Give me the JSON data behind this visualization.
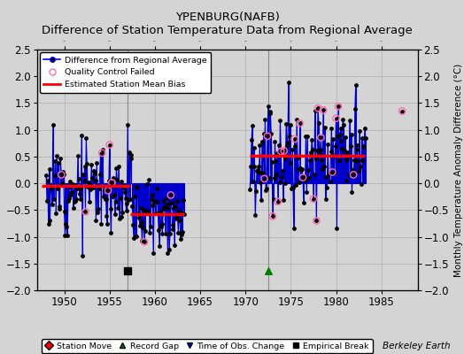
{
  "title": "YPENBURG(NAFB)",
  "subtitle": "Difference of Station Temperature Data from Regional Average",
  "ylabel": "Monthly Temperature Anomaly Difference (°C)",
  "bg_color": "#d8d8d8",
  "plot_bg_color": "#d8d8d8",
  "ylim": [
    -2.0,
    2.5
  ],
  "xlim": [
    1947,
    1989
  ],
  "yticks": [
    -2,
    -1.5,
    -1,
    -0.5,
    0,
    0.5,
    1,
    1.5,
    2,
    2.5
  ],
  "xticks": [
    1950,
    1955,
    1960,
    1965,
    1970,
    1975,
    1980,
    1985
  ],
  "segment1_bias": -0.05,
  "segment1_start": 1947.5,
  "segment1_end": 1957.3,
  "segment2_bias": -0.57,
  "segment2_start": 1957.3,
  "segment2_end": 1963.2,
  "segment3_bias": 0.52,
  "segment3_start": 1970.5,
  "segment3_end": 1983.2,
  "empirical_break_x": 1957.0,
  "record_gap_x": 1972.5,
  "vline1_x": 1957.0,
  "vline2_x": 1972.5,
  "line_color": "#0000cc",
  "bias_color": "#ff0000",
  "qc_color": "#ff69b4",
  "marker_color": "#000000",
  "isolated_x": 1987.3,
  "isolated_y": 1.35
}
